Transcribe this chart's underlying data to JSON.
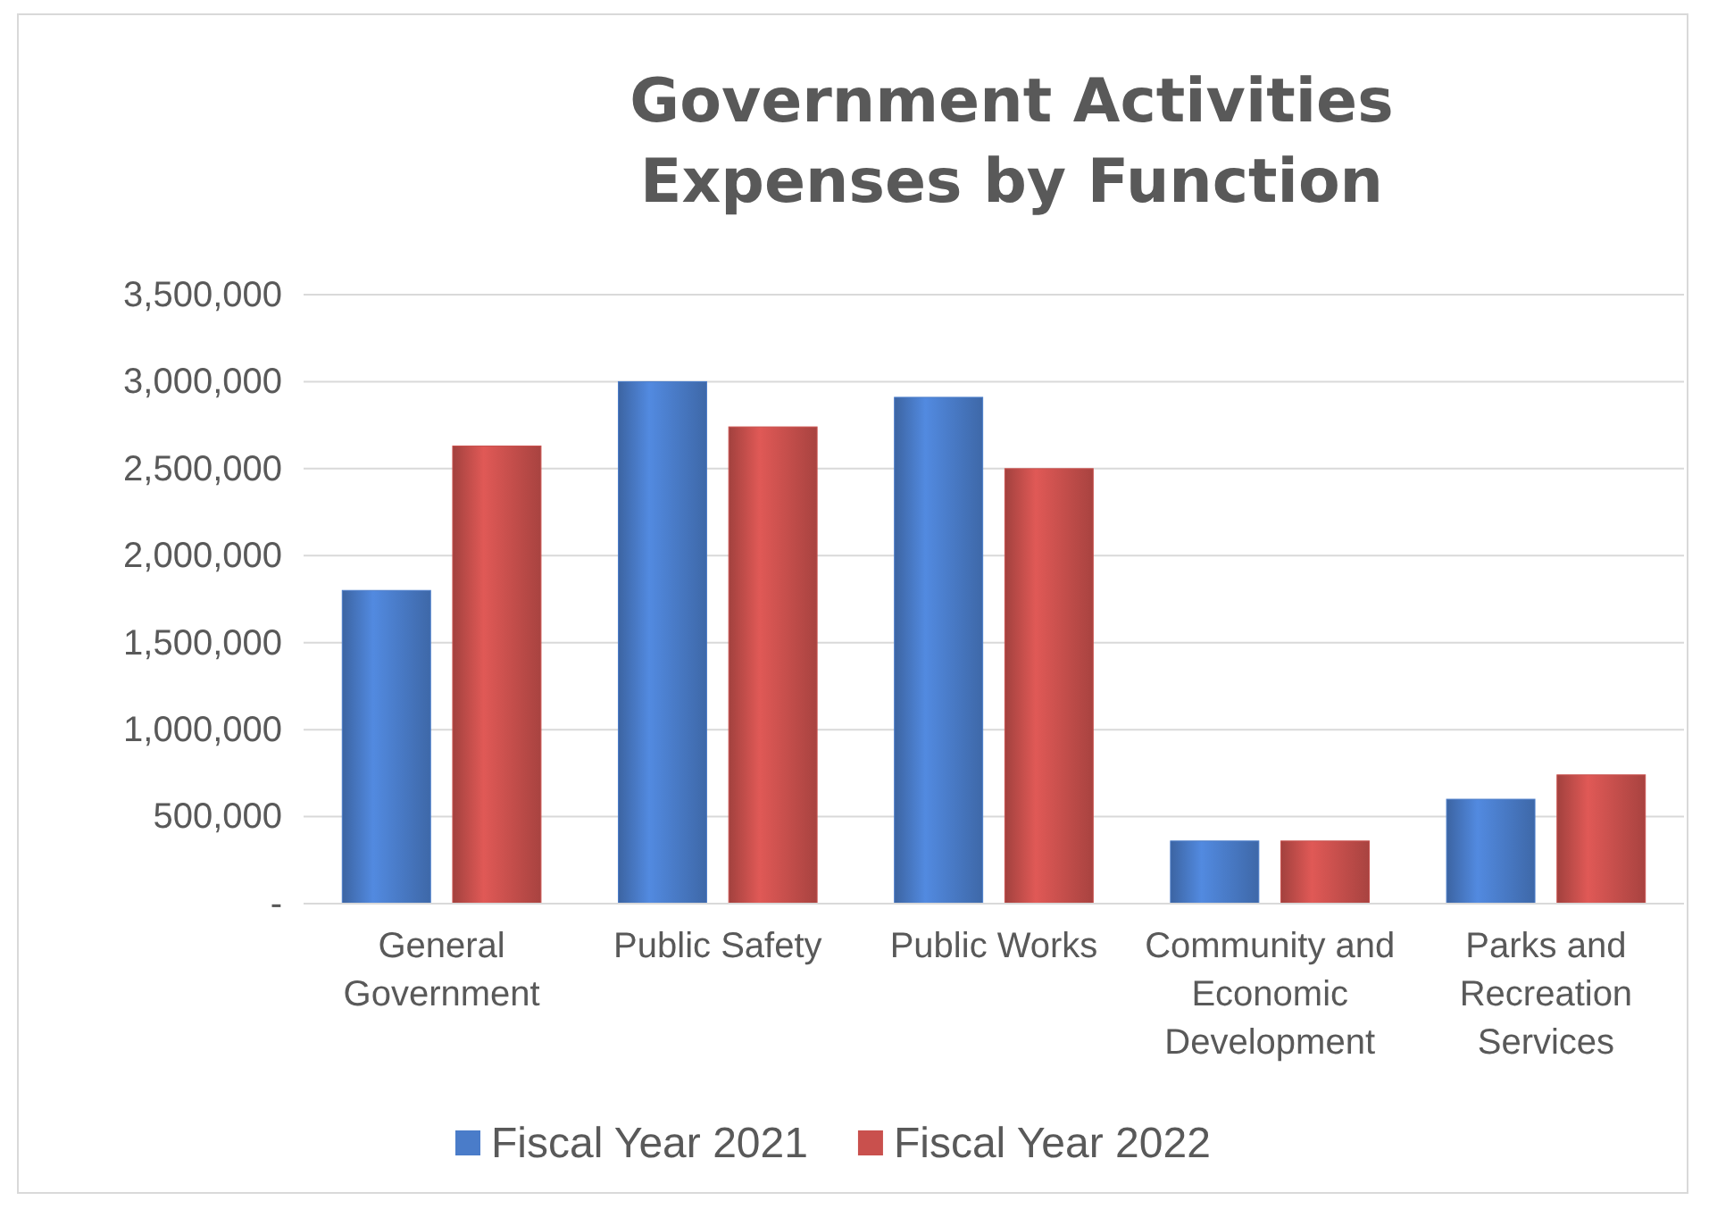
{
  "chart_data": {
    "type": "bar",
    "title": "Government Activities\nExpenses by Function",
    "categories": [
      "General Government",
      "Public Safety",
      "Public Works",
      "Community and Economic Development",
      "Parks and Recreation Services"
    ],
    "series": [
      {
        "name": "Fiscal Year 2021",
        "color": "#4a7cc9",
        "values": [
          1800000,
          3000000,
          2910000,
          360000,
          600000
        ]
      },
      {
        "name": "Fiscal Year 2022",
        "color": "#c9504d",
        "values": [
          2630000,
          2740000,
          2500000,
          360000,
          740000
        ]
      }
    ],
    "ylim": [
      0,
      3500000
    ],
    "yticks": [
      {
        "value": 0,
        "label": "-"
      },
      {
        "value": 500000,
        "label": "500,000"
      },
      {
        "value": 1000000,
        "label": "1,000,000"
      },
      {
        "value": 1500000,
        "label": "1,500,000"
      },
      {
        "value": 2000000,
        "label": "2,000,000"
      },
      {
        "value": 2500000,
        "label": "2,500,000"
      },
      {
        "value": 3000000,
        "label": "3,000,000"
      },
      {
        "value": 3500000,
        "label": "3,500,000"
      }
    ],
    "grid": "y",
    "legend": "bottom"
  }
}
